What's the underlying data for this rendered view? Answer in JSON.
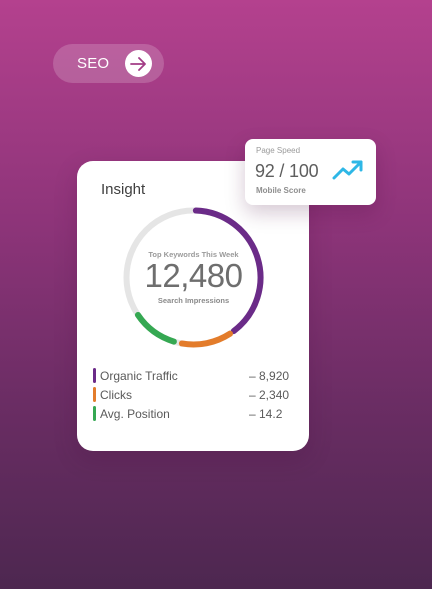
{
  "seo": {
    "label": "SEO",
    "icon": "arrow-right-icon"
  },
  "insight": {
    "title": "Insight",
    "caption": "Top Keywords This Week",
    "value": "12,480",
    "subcaption": "Search Impressions",
    "metrics": [
      {
        "label": "Organic Traffic",
        "value": "– 8,920",
        "color": "#6b2b88"
      },
      {
        "label": "Clicks",
        "value": "– 2,340",
        "color": "#e37c2b"
      },
      {
        "label": "Avg. Position",
        "value": "– 14.2",
        "color": "#35a852"
      }
    ],
    "ring_colors": {
      "track": "#e5e5e5",
      "purple": "#6b2b88",
      "orange": "#e37c2b",
      "green": "#35a852"
    }
  },
  "page_speed": {
    "title": "Page Speed",
    "value": "92 / 100",
    "subtitle": "Mobile Score",
    "icon": "trending-up-icon",
    "icon_color": "#2eb7e6"
  }
}
